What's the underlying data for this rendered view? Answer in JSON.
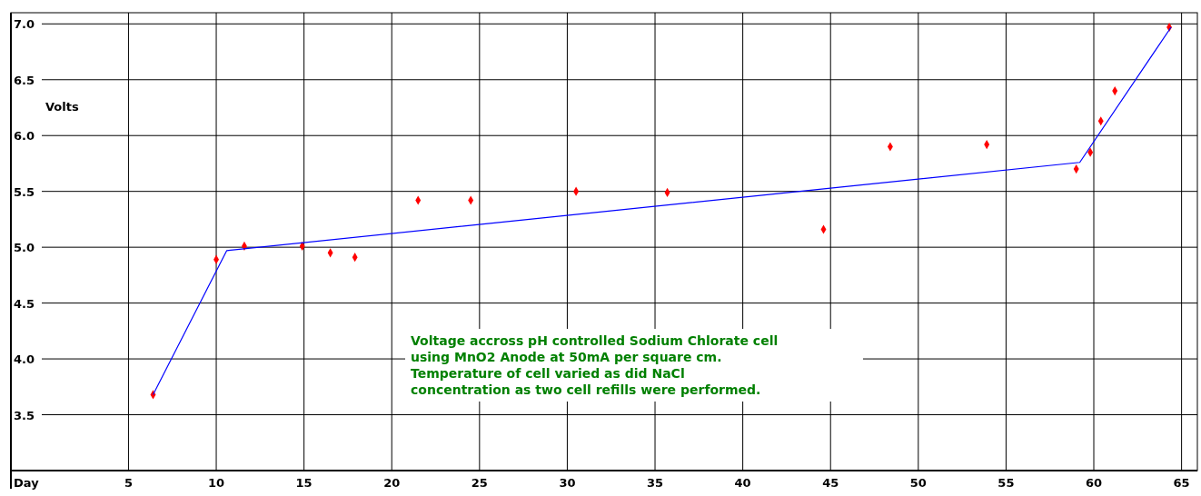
{
  "chart_data": {
    "type": "scatter",
    "xlabel": "Day",
    "ylabel": "Volts",
    "xlim": [
      -1.7,
      65.9
    ],
    "ylim": [
      3.0,
      7.1
    ],
    "xticks": [
      5,
      10,
      15,
      20,
      25,
      30,
      35,
      40,
      45,
      50,
      55,
      60,
      65
    ],
    "yticks": [
      3.5,
      {
        "value": 4,
        "label": "4.0"
      },
      4.5,
      {
        "value": 5,
        "label": "5.0"
      },
      5.5,
      {
        "value": 6,
        "label": "6.0"
      },
      6.5,
      {
        "value": 7,
        "label": "7.0"
      }
    ],
    "grid": true,
    "series": [
      {
        "marker": "diamond",
        "color": "#ff0000",
        "x": [
          6.4,
          10.0,
          11.6,
          14.9,
          16.5,
          17.9,
          21.5,
          24.5,
          30.5,
          35.7,
          44.6,
          48.4,
          53.9,
          59.0,
          59.8,
          60.4,
          61.2,
          64.3
        ],
        "values": [
          3.68,
          4.89,
          5.01,
          5.01,
          4.95,
          4.91,
          5.42,
          5.42,
          5.5,
          5.49,
          5.16,
          5.9,
          5.92,
          5.7,
          5.85,
          6.13,
          6.4,
          6.97
        ]
      },
      {
        "type": "line",
        "color": "#0000ff",
        "x": [
          6.4,
          10.6,
          59.2,
          64.4
        ],
        "values": [
          3.68,
          4.97,
          5.76,
          6.97
        ]
      }
    ],
    "annotations": [
      "Voltage accross pH controlled Sodium Chlorate cell\nusing MnO2 Anode at 50mA per square cm.\nTemperature of cell varied as did NaCl\nconcentration as two cell refills were performed."
    ]
  }
}
